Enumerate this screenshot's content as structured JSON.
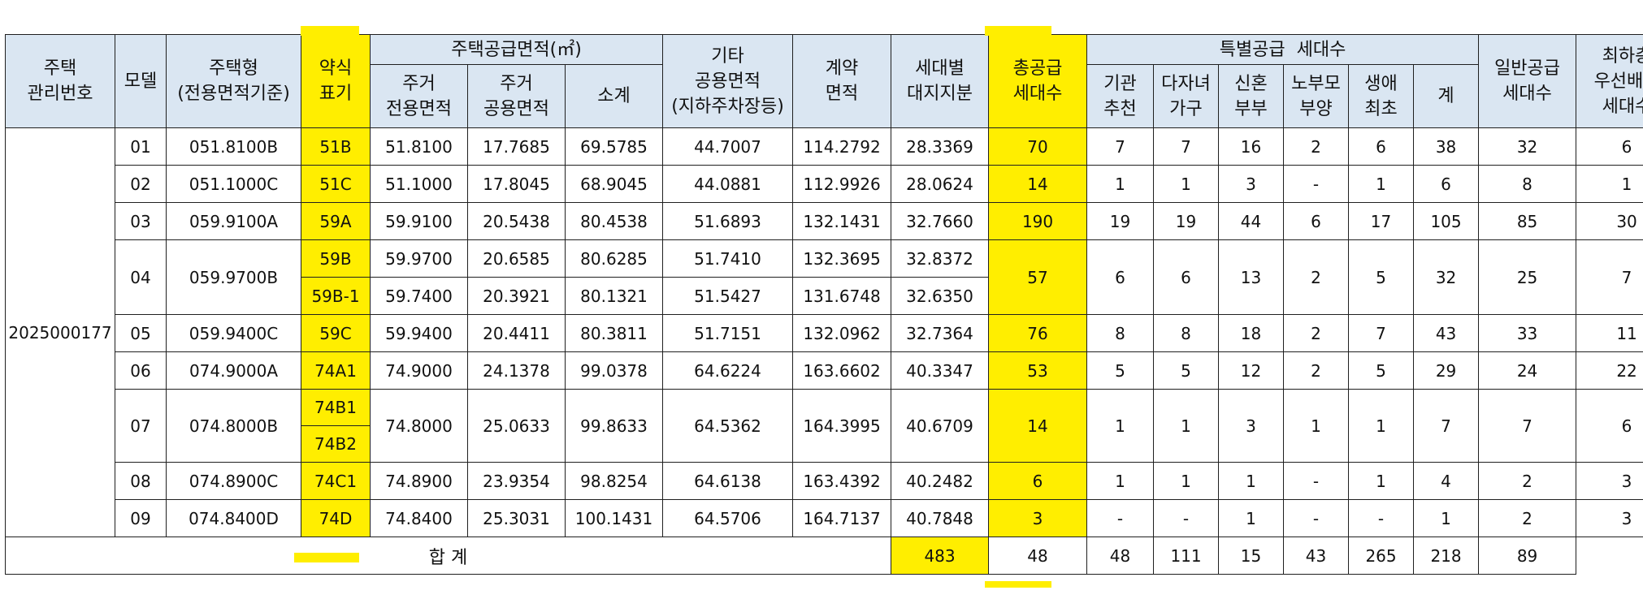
{
  "headers": {
    "mgmt_no": "주택\n관리번호",
    "model": "모델",
    "housing_type": "주택형\n(전용면적기준)",
    "abbrev": "약식\n표기",
    "supply_area_group": "주택공급면적(㎡)",
    "exclusive_area": "주거\n전용면적",
    "common_area": "주거\n공용면적",
    "subtotal": "소계",
    "other_common": "기타\n공용면적\n(지하주차장등)",
    "contract_area": "계약\n면적",
    "land_share": "세대별\n대지지분",
    "total_supply": "총공급\n세대수",
    "special_group": "특별공급  세대수",
    "institution": "기관\n추천",
    "multi_child": "다자녀\n가구",
    "newlywed": "신혼\n부부",
    "elderly_parent": "노부모\n부양",
    "first_time": "생애\n최초",
    "special_total": "계",
    "general_supply": "일반공급\n세대수",
    "top_floor_priority": "최하층\n우선배정\n세대수"
  },
  "mgmt_number": "2025000177",
  "rows": [
    {
      "model": "01",
      "type": "051.8100B",
      "abbrev": [
        "51B"
      ],
      "excl": [
        "51.8100"
      ],
      "common": [
        "17.7685"
      ],
      "sub": [
        "69.5785"
      ],
      "other": [
        "44.7007"
      ],
      "contract": [
        "114.2792"
      ],
      "land": [
        "28.3369"
      ],
      "total": "70",
      "inst": "7",
      "multi": "7",
      "newly": "16",
      "elder": "2",
      "first": "6",
      "sp_total": "38",
      "general": "32",
      "top": "6"
    },
    {
      "model": "02",
      "type": "051.1000C",
      "abbrev": [
        "51C"
      ],
      "excl": [
        "51.1000"
      ],
      "common": [
        "17.8045"
      ],
      "sub": [
        "68.9045"
      ],
      "other": [
        "44.0881"
      ],
      "contract": [
        "112.9926"
      ],
      "land": [
        "28.0624"
      ],
      "total": "14",
      "inst": "1",
      "multi": "1",
      "newly": "3",
      "elder": "-",
      "first": "1",
      "sp_total": "6",
      "general": "8",
      "top": "1"
    },
    {
      "model": "03",
      "type": "059.9100A",
      "abbrev": [
        "59A"
      ],
      "excl": [
        "59.9100"
      ],
      "common": [
        "20.5438"
      ],
      "sub": [
        "80.4538"
      ],
      "other": [
        "51.6893"
      ],
      "contract": [
        "132.1431"
      ],
      "land": [
        "32.7660"
      ],
      "total": "190",
      "inst": "19",
      "multi": "19",
      "newly": "44",
      "elder": "6",
      "first": "17",
      "sp_total": "105",
      "general": "85",
      "top": "30"
    },
    {
      "model": "04",
      "type": "059.9700B",
      "abbrev": [
        "59B",
        "59B-1"
      ],
      "excl": [
        "59.9700",
        "59.7400"
      ],
      "common": [
        "20.6585",
        "20.3921"
      ],
      "sub": [
        "80.6285",
        "80.1321"
      ],
      "other": [
        "51.7410",
        "51.5427"
      ],
      "contract": [
        "132.3695",
        "131.6748"
      ],
      "land": [
        "32.8372",
        "32.6350"
      ],
      "total": "57",
      "inst": "6",
      "multi": "6",
      "newly": "13",
      "elder": "2",
      "first": "5",
      "sp_total": "32",
      "general": "25",
      "top": "7"
    },
    {
      "model": "05",
      "type": "059.9400C",
      "abbrev": [
        "59C"
      ],
      "excl": [
        "59.9400"
      ],
      "common": [
        "20.4411"
      ],
      "sub": [
        "80.3811"
      ],
      "other": [
        "51.7151"
      ],
      "contract": [
        "132.0962"
      ],
      "land": [
        "32.7364"
      ],
      "total": "76",
      "inst": "8",
      "multi": "8",
      "newly": "18",
      "elder": "2",
      "first": "7",
      "sp_total": "43",
      "general": "33",
      "top": "11"
    },
    {
      "model": "06",
      "type": "074.9000A",
      "abbrev": [
        "74A1"
      ],
      "excl": [
        "74.9000"
      ],
      "common": [
        "24.1378"
      ],
      "sub": [
        "99.0378"
      ],
      "other": [
        "64.6224"
      ],
      "contract": [
        "163.6602"
      ],
      "land": [
        "40.3347"
      ],
      "total": "53",
      "inst": "5",
      "multi": "5",
      "newly": "12",
      "elder": "2",
      "first": "5",
      "sp_total": "29",
      "general": "24",
      "top": "22"
    },
    {
      "model": "07",
      "type": "074.8000B",
      "abbrev": [
        "74B1",
        "74B2"
      ],
      "excl": [
        "74.8000"
      ],
      "common": [
        "25.0633"
      ],
      "sub": [
        "99.8633"
      ],
      "other": [
        "64.5362"
      ],
      "contract": [
        "164.3995"
      ],
      "land": [
        "40.6709"
      ],
      "total": "14",
      "inst": "1",
      "multi": "1",
      "newly": "3",
      "elder": "1",
      "first": "1",
      "sp_total": "7",
      "general": "7",
      "top": "6"
    },
    {
      "model": "08",
      "type": "074.8900C",
      "abbrev": [
        "74C1"
      ],
      "excl": [
        "74.8900"
      ],
      "common": [
        "23.9354"
      ],
      "sub": [
        "98.8254"
      ],
      "other": [
        "64.6138"
      ],
      "contract": [
        "163.4392"
      ],
      "land": [
        "40.2482"
      ],
      "total": "6",
      "inst": "1",
      "multi": "1",
      "newly": "1",
      "elder": "-",
      "first": "1",
      "sp_total": "4",
      "general": "2",
      "top": "3"
    },
    {
      "model": "09",
      "type": "074.8400D",
      "abbrev": [
        "74D"
      ],
      "excl": [
        "74.8400"
      ],
      "common": [
        "25.3031"
      ],
      "sub": [
        "100.1431"
      ],
      "other": [
        "64.5706"
      ],
      "contract": [
        "164.7137"
      ],
      "land": [
        "40.7848"
      ],
      "total": "3",
      "inst": "-",
      "multi": "-",
      "newly": "1",
      "elder": "-",
      "first": "-",
      "sp_total": "1",
      "general": "2",
      "top": "3"
    }
  ],
  "totals": {
    "label": "합 계",
    "total": "483",
    "inst": "48",
    "multi": "48",
    "newly": "111",
    "elder": "15",
    "first": "43",
    "sp_total": "265",
    "general": "218",
    "top": "89"
  },
  "colors": {
    "header_bg": "#dae6f2",
    "highlight": "#ffee00",
    "border": "#1f1f1f"
  }
}
